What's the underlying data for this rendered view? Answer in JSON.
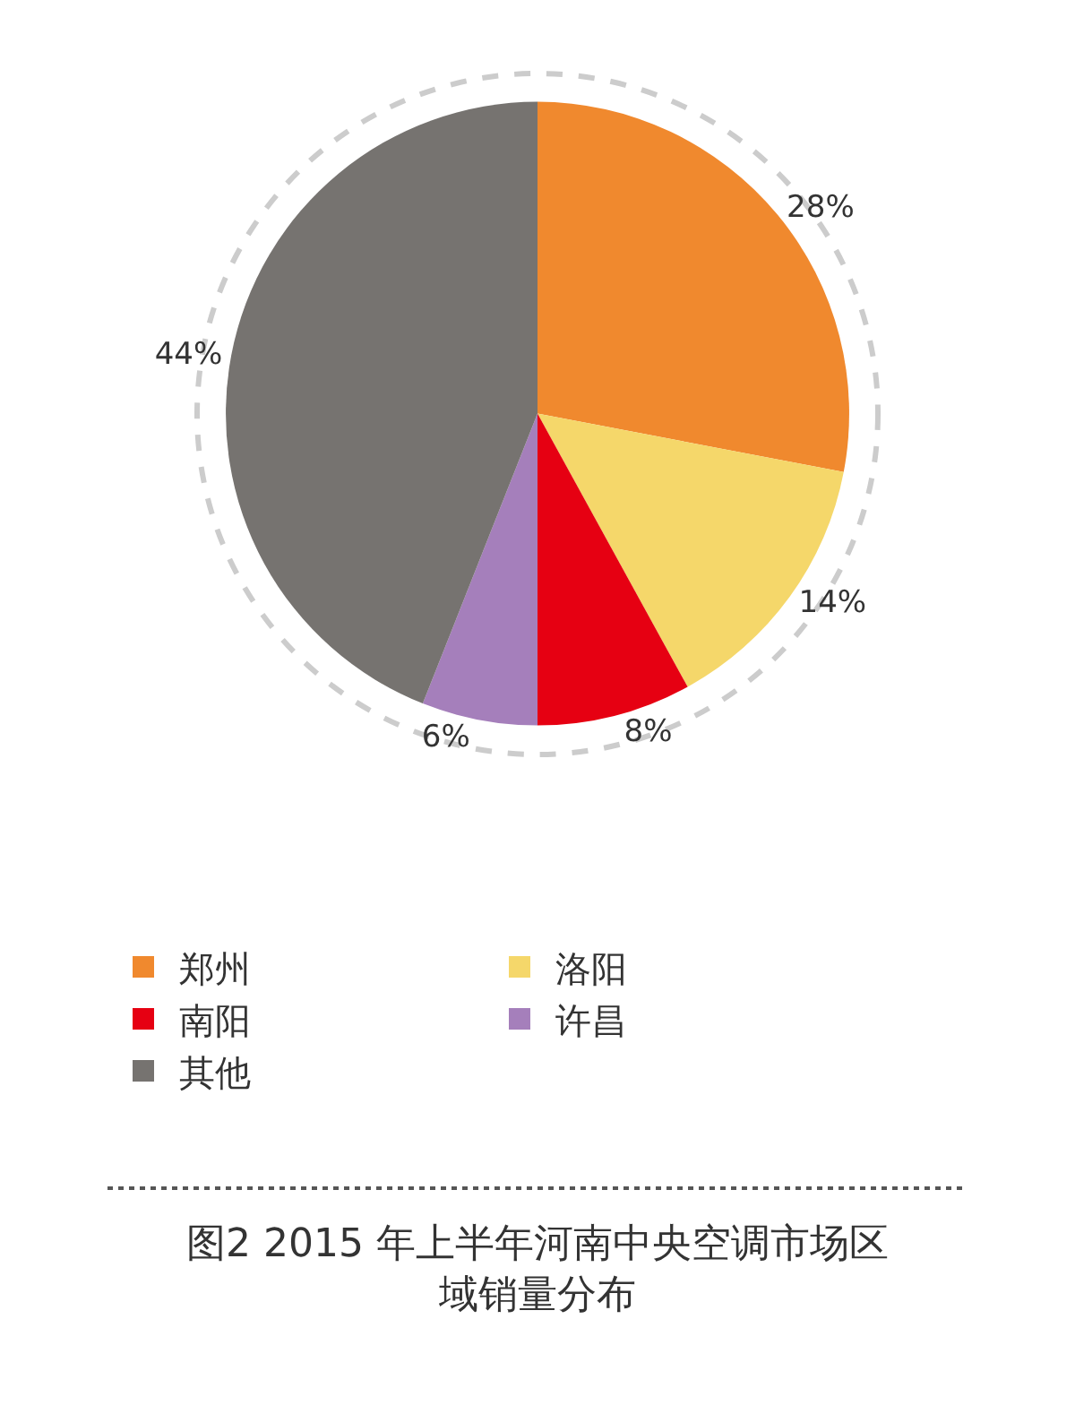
{
  "chart_data": {
    "type": "pie",
    "title": "图2 2015 年上半年河南中央空调市场区域销量分布",
    "categories": [
      "郑州",
      "洛阳",
      "南阳",
      "许昌",
      "其他"
    ],
    "values": [
      28,
      14,
      8,
      6,
      44
    ],
    "value_labels": [
      "28%",
      "14%",
      "8%",
      "6%",
      "44%"
    ],
    "colors": [
      "#f0892e",
      "#f5d76a",
      "#e60012",
      "#a57fbb",
      "#767370"
    ],
    "legend": "bottom"
  }
}
